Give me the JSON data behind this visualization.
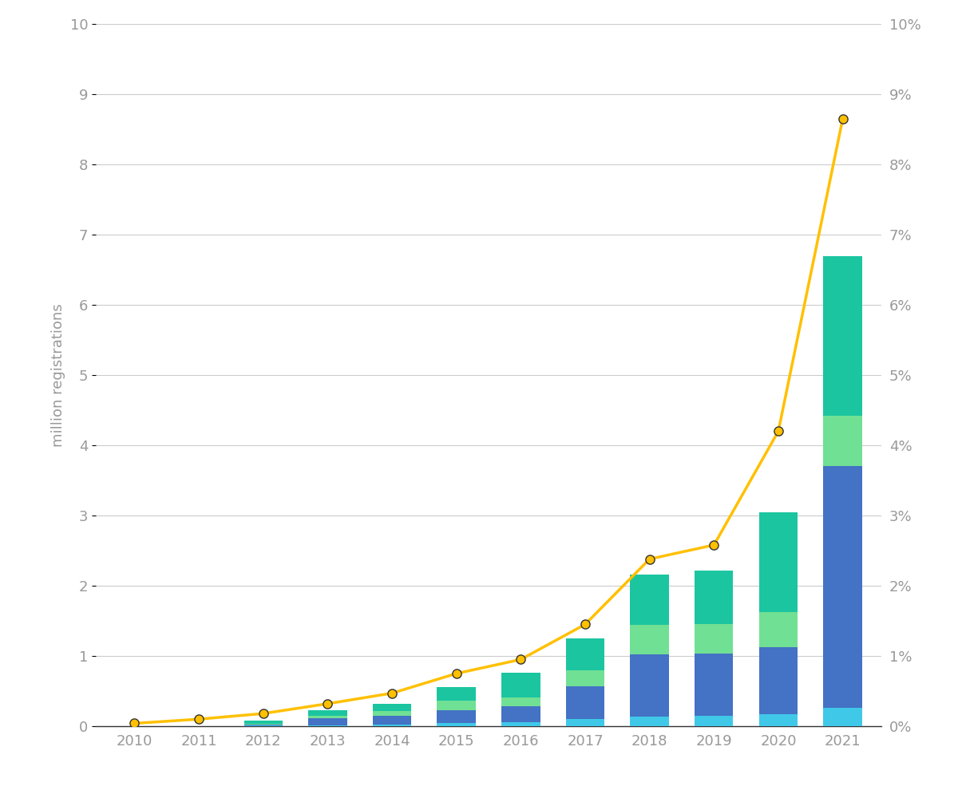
{
  "years": [
    2010,
    2011,
    2012,
    2013,
    2014,
    2015,
    2016,
    2017,
    2018,
    2019,
    2020,
    2021
  ],
  "bar_segments": {
    "light_blue": [
      0.0,
      0.0,
      0.01,
      0.01,
      0.02,
      0.04,
      0.06,
      0.1,
      0.14,
      0.15,
      0.17,
      0.26
    ],
    "medium_blue": [
      0.0,
      0.0,
      0.01,
      0.1,
      0.13,
      0.19,
      0.22,
      0.47,
      0.88,
      0.88,
      0.95,
      3.44
    ],
    "light_green": [
      0.0,
      0.0,
      0.01,
      0.04,
      0.07,
      0.13,
      0.13,
      0.23,
      0.42,
      0.42,
      0.5,
      0.72
    ],
    "teal": [
      0.0,
      0.0,
      0.05,
      0.08,
      0.1,
      0.2,
      0.35,
      0.45,
      0.72,
      0.77,
      1.43,
      2.27
    ]
  },
  "line_values": [
    0.04,
    0.1,
    0.18,
    0.32,
    0.47,
    0.75,
    0.95,
    1.45,
    2.38,
    2.58,
    4.2,
    8.65
  ],
  "colors": {
    "light_blue": "#40C8E8",
    "medium_blue": "#4472C4",
    "light_green": "#70E094",
    "teal": "#1BC5A0",
    "line": "#FFC000"
  },
  "ylim": [
    0,
    10
  ],
  "ylabel": "million registrations",
  "background_color": "#FFFFFF",
  "grid_color": "#CCCCCC",
  "tick_color": "#999999",
  "bar_width": 0.6,
  "yticks": [
    0,
    1,
    2,
    3,
    4,
    5,
    6,
    7,
    8,
    9,
    10
  ],
  "font_size": 13
}
